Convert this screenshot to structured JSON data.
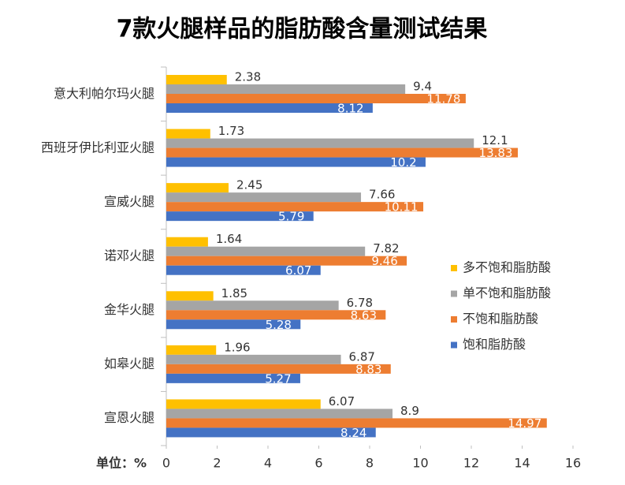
{
  "chart_data": {
    "type": "hbar",
    "title": "7款火腿样品的脂肪酸含量测试结果",
    "x_label": "单位：%",
    "categories": [
      "意大利帕尔玛火腿",
      "西班牙伊比利亚火腿",
      "宣威火腿",
      "诺邓火腿",
      "金华火腿",
      "如皋火腿",
      "宣恩火腿"
    ],
    "series": [
      {
        "name": "多不饱和脂肪酸",
        "color": "#ffc000",
        "values": [
          2.38,
          1.73,
          2.45,
          1.64,
          1.85,
          1.96,
          6.07
        ]
      },
      {
        "name": "单不饱和脂肪酸",
        "color": "#a5a5a5",
        "values": [
          9.4,
          12.1,
          7.66,
          7.82,
          6.78,
          6.87,
          8.9
        ]
      },
      {
        "name": "不饱和脂肪酸",
        "color": "#ed7d31",
        "values": [
          11.78,
          13.83,
          10.11,
          9.46,
          8.63,
          8.83,
          14.97
        ]
      },
      {
        "name": "饱和脂肪酸",
        "color": "#4472c4",
        "values": [
          8.12,
          10.2,
          5.79,
          6.07,
          5.28,
          5.27,
          8.24
        ]
      }
    ],
    "xlim": [
      0,
      16
    ],
    "xticks": [
      0,
      2,
      4,
      6,
      8,
      10,
      12,
      14,
      16
    ],
    "legend": "right"
  }
}
